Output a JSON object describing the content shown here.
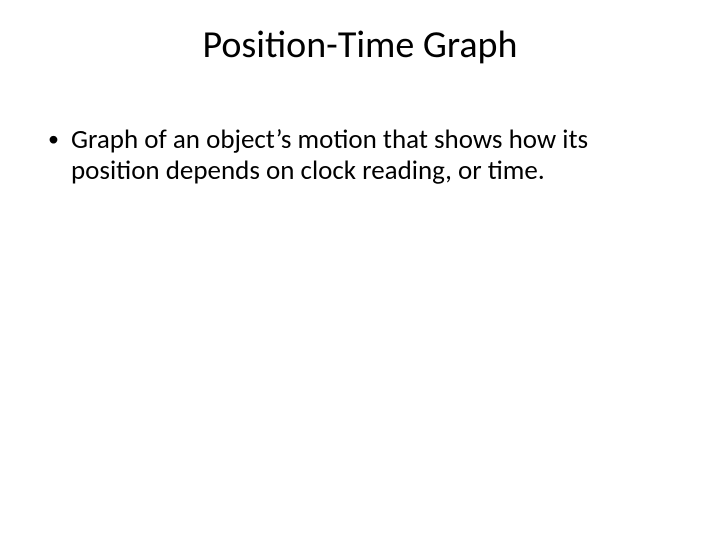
{
  "slide": {
    "title": "Position-Time Graph",
    "bullets": [
      {
        "text": "Graph of an object’s motion that shows how its position depends on clock reading, or time."
      }
    ]
  },
  "style": {
    "background_color": "#ffffff",
    "text_color": "#000000",
    "title_fontsize": 38,
    "body_fontsize": 27,
    "font_family": "Calibri",
    "bullet_marker": "•"
  }
}
